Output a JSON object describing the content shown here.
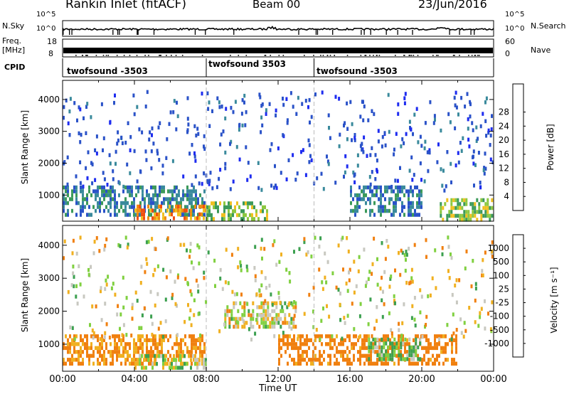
{
  "header": {
    "title": "Rankin Inlet (fitACF)",
    "beam": "Beam 00",
    "date": "23/Jun/2016"
  },
  "noise_panel": {
    "left_label": "N.Sky",
    "right_label": "N.Search",
    "left_ticks": [
      "10^5",
      "10^0"
    ],
    "right_ticks": [
      "10^5",
      "10^0"
    ]
  },
  "freq_panel": {
    "left_label_1": "Freq.",
    "left_label_2": "[MHz]",
    "right_label": "Nave",
    "left_ticks": [
      "18",
      "8"
    ],
    "right_ticks": [
      "60",
      "0"
    ]
  },
  "cpid_panel": {
    "label": "CPID",
    "segments": [
      {
        "text": "twofsound -3503",
        "start_hour": 0,
        "end_hour": 8
      },
      {
        "text": "twofsound 3503",
        "start_hour": 8,
        "end_hour": 14
      },
      {
        "text": "twofsound -3503",
        "start_hour": 14,
        "end_hour": 24
      }
    ]
  },
  "chart_data": [
    {
      "type": "heatmap",
      "name": "power",
      "ylabel": "Slant Range [km]",
      "ylim": [
        180,
        4600
      ],
      "yticks": [
        1000,
        2000,
        3000,
        4000
      ],
      "xlim": [
        0,
        24
      ],
      "colorbar": {
        "label": "Power [dB]",
        "ticks": [
          "4",
          "8",
          "12",
          "16",
          "20",
          "24",
          "28"
        ],
        "colors": [
          "#1e2cf0",
          "#2a52c8",
          "#3a8a9c",
          "#3c9a5a",
          "#8cc840",
          "#f0c020",
          "#f08c10",
          "#f05010",
          "#e81010"
        ]
      },
      "regions": [
        {
          "x": [
            0.0,
            8.0
          ],
          "y": [
            300,
            1300
          ],
          "value": 10
        },
        {
          "x": [
            4.0,
            8.0
          ],
          "y": [
            180,
            700
          ],
          "value": 26
        },
        {
          "x": [
            8.0,
            11.5
          ],
          "y": [
            180,
            800
          ],
          "value": 18
        },
        {
          "x": [
            16.0,
            20.0
          ],
          "y": [
            300,
            1300
          ],
          "value": 9
        },
        {
          "x": [
            21.0,
            24.0
          ],
          "y": [
            180,
            900
          ],
          "value": 18
        }
      ]
    },
    {
      "type": "heatmap",
      "name": "velocity",
      "xlabel": "Time UT",
      "ylabel": "Slant Range [km]",
      "ylim": [
        180,
        4600
      ],
      "yticks": [
        1000,
        2000,
        3000,
        4000
      ],
      "xlim": [
        0,
        24
      ],
      "xticks": [
        "00:00",
        "04:00",
        "08:00",
        "12:00",
        "16:00",
        "20:00",
        "00:00"
      ],
      "colorbar": {
        "label": "Velocity [m s⁻¹]",
        "ticks": [
          "1000",
          "500",
          "100",
          "25",
          "-25",
          "-100",
          "-500",
          "-1000"
        ],
        "colors": [
          "#2040c8",
          "#3a7a8a",
          "#3ca050",
          "#80d040",
          "#c8c8c0",
          "#f0b020",
          "#f08010",
          "#f04010",
          "#e81010"
        ]
      },
      "regions": [
        {
          "x": [
            0.0,
            8.0
          ],
          "y": [
            300,
            1300
          ],
          "value": -150
        },
        {
          "x": [
            4.0,
            8.0
          ],
          "y": [
            180,
            700
          ],
          "value": 25
        },
        {
          "x": [
            9.0,
            13.0
          ],
          "y": [
            1500,
            2300
          ],
          "value": 0
        },
        {
          "x": [
            12.0,
            22.0
          ],
          "y": [
            300,
            1300
          ],
          "value": -200
        },
        {
          "x": [
            17.0,
            20.0
          ],
          "y": [
            500,
            1200
          ],
          "value": 100
        }
      ]
    }
  ]
}
